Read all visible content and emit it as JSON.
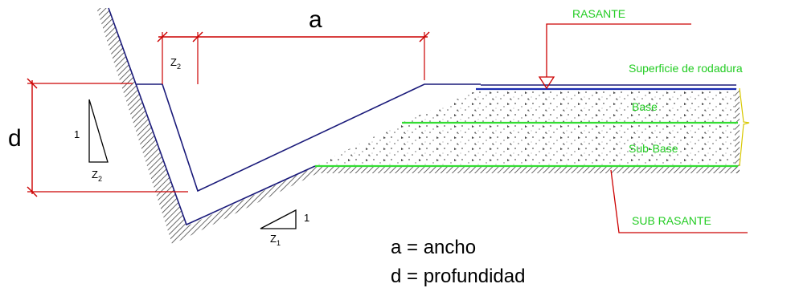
{
  "labels": {
    "width_symbol": "a",
    "depth_symbol": "d",
    "slope_z2_top": "Z",
    "slope_z2_top_sub": "2",
    "slope_left_one": "1",
    "slope_left_z": "Z",
    "slope_left_sub": "2",
    "slope_bottom_one": "1",
    "slope_bottom_z": "Z",
    "slope_bottom_sub": "1"
  },
  "layers": {
    "rasante": "RASANTE",
    "superficie": "Superficie de rodadura",
    "base": "Base",
    "sub_base": "Sub-Base",
    "sub_rasante": "SUB RASANTE"
  },
  "legend": {
    "a_def": "a = ancho",
    "d_def": "d = profundidad"
  },
  "colors": {
    "dimension": "#cc0000",
    "layer_text": "#22cc22",
    "green_line": "#33dd33",
    "blue_line": "#1a2bb0",
    "outline": "#1a1a7a"
  }
}
